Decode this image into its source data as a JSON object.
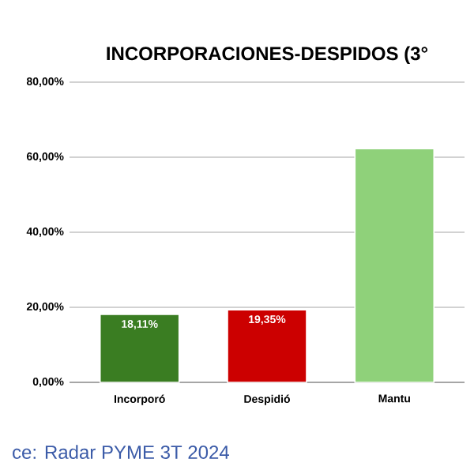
{
  "chart_data": {
    "type": "bar",
    "title": "INCORPORACIONES-DESPIDOS (3°",
    "categories": [
      "Incorporó",
      "Despidió",
      "Mantu"
    ],
    "values": [
      18.11,
      19.35,
      62.3
    ],
    "colors": [
      "#3a7d22",
      "#cc0000",
      "#8fd17a"
    ],
    "value_labels": [
      "18,11%",
      "19,35%",
      null
    ],
    "ylim": [
      0,
      80
    ],
    "yticks": [
      {
        "value": 0,
        "label": "0,00%"
      },
      {
        "value": 20,
        "label": "20,00%"
      },
      {
        "value": 40,
        "label": "40,00%"
      },
      {
        "value": 60,
        "label": "60,00%"
      },
      {
        "value": 80,
        "label": "80,00%"
      }
    ],
    "grid": "y",
    "annotations": [
      "ce: Radar PYME 3T 2024"
    ]
  }
}
